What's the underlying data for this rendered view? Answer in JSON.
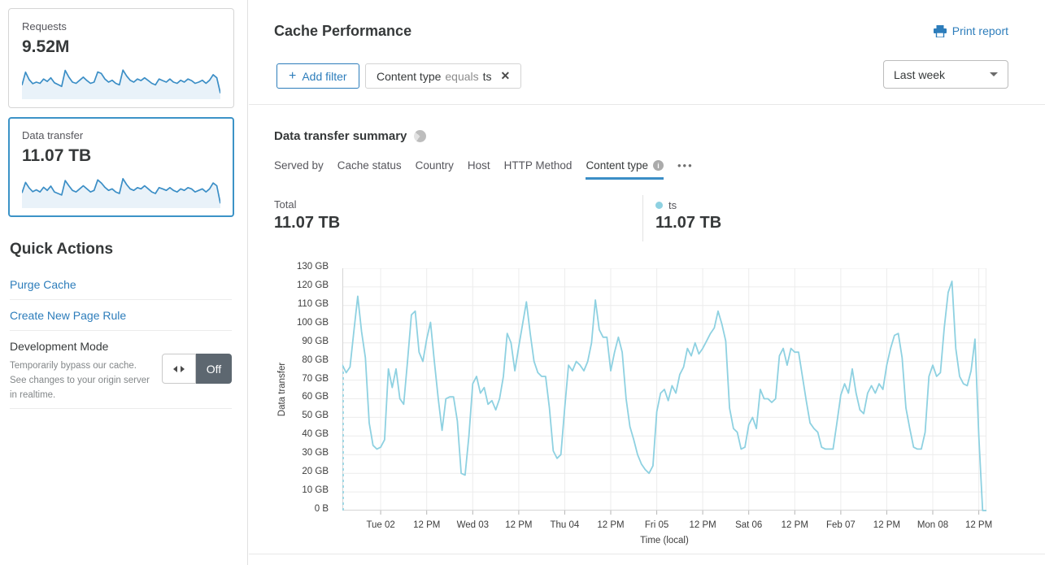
{
  "colors": {
    "accent_blue": "#2d7dbb",
    "sparkline_blue": "#3b8ec6",
    "sparkline_fill": "#e9f2f9",
    "chart_line": "#8ed1e1",
    "card_active_border": "#3c93c7",
    "toggle_off_bg": "#5d6770"
  },
  "sidebar": {
    "cards": [
      {
        "label": "Requests",
        "value": "9.52M",
        "sparkline": [
          40,
          82,
          58,
          45,
          50,
          46,
          60,
          52,
          64,
          48,
          42,
          36,
          88,
          66,
          50,
          46,
          56,
          66,
          55,
          46,
          50,
          83,
          78,
          60,
          50,
          56,
          46,
          41,
          89,
          70,
          56,
          50,
          60,
          55,
          64,
          55,
          46,
          41,
          60,
          55,
          50,
          60,
          50,
          46,
          56,
          50,
          60,
          55,
          46,
          50,
          56,
          46,
          56,
          74,
          64,
          14
        ]
      },
      {
        "label": "Data transfer",
        "value": "11.07 TB",
        "sparkline": [
          44,
          78,
          60,
          48,
          54,
          47,
          62,
          52,
          66,
          47,
          42,
          37,
          84,
          67,
          52,
          47,
          57,
          67,
          57,
          47,
          52,
          86,
          76,
          62,
          52,
          57,
          47,
          42,
          90,
          71,
          57,
          52,
          61,
          57,
          67,
          57,
          47,
          42,
          61,
          57,
          52,
          61,
          52,
          47,
          57,
          52,
          61,
          57,
          47,
          52,
          57,
          47,
          57,
          76,
          67,
          10
        ]
      }
    ],
    "quick_actions": {
      "title": "Quick Actions",
      "links": [
        {
          "label": "Purge Cache"
        },
        {
          "label": "Create New Page Rule"
        }
      ],
      "dev_mode": {
        "title": "Development Mode",
        "description": "Temporarily bypass our cache. See changes to your origin server in realtime.",
        "toggle_label": "Off"
      }
    }
  },
  "header": {
    "title": "Cache Performance",
    "print_label": "Print report",
    "add_filter_label": "Add filter",
    "add_filter_plus": "+",
    "filter_chip": {
      "field": "Content type",
      "operator": "equals",
      "value": "ts",
      "remove": "✕"
    },
    "period_select": "Last week"
  },
  "summary": {
    "title": "Data transfer summary",
    "tabs": [
      {
        "label": "Served by"
      },
      {
        "label": "Cache status"
      },
      {
        "label": "Country"
      },
      {
        "label": "Host"
      },
      {
        "label": "HTTP Method"
      },
      {
        "label": "Content type"
      }
    ],
    "info_glyph": "i",
    "more_label": "•••",
    "total": {
      "label": "Total",
      "value": "11.07 TB"
    },
    "legend": {
      "series": "ts",
      "value": "11.07 TB"
    }
  },
  "chart_data": {
    "type": "line",
    "title": "Data transfer summary",
    "ylabel": "Data transfer",
    "xlabel": "Time (local)",
    "ylim": [
      0,
      130
    ],
    "unit": "GB",
    "grid": true,
    "dashed_start": true,
    "y_ticks": [
      "0 B",
      "10 GB",
      "20 GB",
      "30 GB",
      "40 GB",
      "50 GB",
      "60 GB",
      "70 GB",
      "80 GB",
      "90 GB",
      "100 GB",
      "110 GB",
      "120 GB",
      "130 GB"
    ],
    "x_ticks": [
      "Tue 02",
      "12 PM",
      "Wed 03",
      "12 PM",
      "Thu 04",
      "12 PM",
      "Fri 05",
      "12 PM",
      "Sat 06",
      "12 PM",
      "Feb 07",
      "12 PM",
      "Mon 08",
      "12 PM"
    ],
    "x_tick_first_hour": 10,
    "x_tick_step_hours": 12,
    "total_hours": 168,
    "series": [
      {
        "name": "ts",
        "values": [
          78,
          74,
          77,
          96,
          115,
          96,
          82,
          47,
          35,
          33,
          34,
          38,
          76,
          66,
          76,
          60,
          57,
          80,
          105,
          107,
          85,
          80,
          92,
          101,
          80,
          60,
          43,
          60,
          61,
          61,
          48,
          20,
          19,
          40,
          68,
          72,
          63,
          66,
          57,
          59,
          54,
          60,
          72,
          95,
          90,
          75,
          88,
          100,
          112,
          95,
          80,
          74,
          72,
          72,
          55,
          32,
          28,
          30,
          55,
          78,
          75,
          80,
          78,
          75,
          80,
          90,
          113,
          97,
          93,
          93,
          75,
          85,
          93,
          85,
          60,
          45,
          38,
          30,
          25,
          22,
          20,
          24,
          53,
          63,
          65,
          59,
          67,
          63,
          73,
          77,
          87,
          83,
          90,
          84,
          87,
          91,
          95,
          98,
          107,
          100,
          91,
          55,
          44,
          42,
          33,
          34,
          46,
          50,
          44,
          65,
          60,
          60,
          58,
          60,
          83,
          87,
          78,
          87,
          85,
          85,
          72,
          59,
          47,
          44,
          42,
          34,
          33,
          33,
          33,
          47,
          62,
          68,
          63,
          76,
          63,
          54,
          52,
          63,
          67,
          63,
          68,
          65,
          78,
          87,
          94,
          95,
          82,
          55,
          44,
          34,
          33,
          33,
          42,
          72,
          78,
          72,
          74,
          98,
          117,
          123,
          87,
          72,
          68,
          67,
          75,
          92,
          40,
          0,
          0
        ]
      }
    ]
  }
}
